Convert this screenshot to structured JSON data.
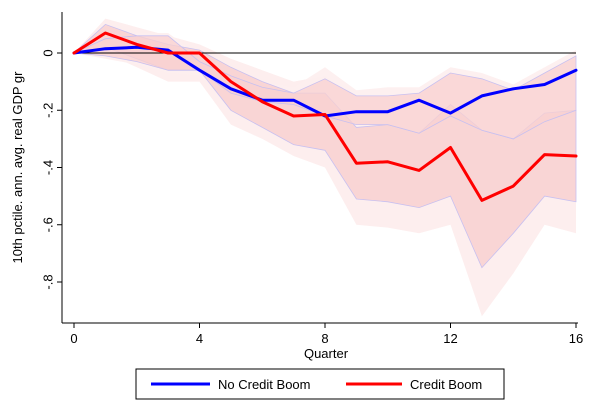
{
  "chart_data": {
    "type": "line",
    "xlabel": "Quarter",
    "ylabel": "10th pctile. ann. avg. real GDP gr",
    "xlim": [
      0,
      16
    ],
    "ylim": [
      -0.92,
      0.13
    ],
    "x_ticks": [
      0,
      4,
      8,
      12,
      16
    ],
    "x_tick_labels": [
      "0",
      "4",
      "8",
      "12",
      "16"
    ],
    "y_ticks": [
      0,
      -0.2,
      -0.4,
      -0.6,
      -0.8
    ],
    "y_tick_labels": [
      "0",
      "-.2",
      "-.4",
      "-.6",
      "-.8"
    ],
    "reference_line_y": 0,
    "grid": false,
    "legend_position": "bottom",
    "x": [
      0,
      1,
      2,
      3,
      4,
      5,
      6,
      7,
      8,
      9,
      10,
      11,
      12,
      13,
      14,
      15,
      16
    ],
    "series": [
      {
        "name": "No Credit Boom",
        "color": "#0000ff",
        "values": [
          0,
          0.015,
          0.02,
          0.01,
          -0.06,
          -0.125,
          -0.165,
          -0.165,
          -0.22,
          -0.205,
          -0.205,
          -0.165,
          -0.21,
          -0.15,
          -0.125,
          -0.11,
          -0.06
        ],
        "ci_inner_lower": [
          0,
          -0.01,
          -0.03,
          -0.06,
          -0.06,
          -0.14,
          -0.17,
          -0.18,
          -0.22,
          -0.25,
          -0.25,
          -0.28,
          -0.22,
          -0.27,
          -0.3,
          -0.24,
          -0.2
        ],
        "ci_inner_upper": [
          0,
          0.05,
          0.06,
          0.06,
          -0.03,
          -0.08,
          -0.12,
          -0.14,
          -0.09,
          -0.15,
          -0.15,
          -0.14,
          -0.07,
          -0.09,
          -0.13,
          -0.07,
          -0.01
        ],
        "ci_outer_lower": [
          0,
          -0.02,
          -0.04,
          -0.07,
          -0.08,
          -0.17,
          -0.2,
          -0.22,
          -0.26,
          -0.28,
          -0.27,
          -0.31,
          -0.25,
          -0.29,
          -0.31,
          -0.26,
          -0.22
        ],
        "ci_outer_upper": [
          0,
          0.06,
          0.07,
          0.07,
          -0.01,
          -0.06,
          -0.1,
          -0.12,
          -0.05,
          -0.13,
          -0.12,
          -0.12,
          -0.05,
          -0.07,
          -0.11,
          -0.05,
          0.01
        ]
      },
      {
        "name": "Credit Boom",
        "color": "#ff0000",
        "values": [
          0,
          0.07,
          0.03,
          0.0,
          0.0,
          -0.1,
          -0.17,
          -0.22,
          -0.215,
          -0.385,
          -0.38,
          -0.41,
          -0.33,
          -0.515,
          -0.465,
          -0.355,
          -0.36
        ],
        "ci_inner_lower": [
          0,
          0.02,
          -0.02,
          -0.06,
          -0.06,
          -0.2,
          -0.26,
          -0.32,
          -0.34,
          -0.51,
          -0.52,
          -0.54,
          -0.5,
          -0.75,
          -0.63,
          -0.5,
          -0.52
        ],
        "ci_inner_upper": [
          0,
          0.1,
          0.06,
          0.03,
          0.01,
          -0.05,
          -0.1,
          -0.14,
          -0.14,
          -0.26,
          -0.25,
          -0.28,
          -0.18,
          -0.27,
          -0.3,
          -0.21,
          -0.2
        ],
        "ci_outer_lower": [
          0,
          0.0,
          -0.05,
          -0.1,
          -0.1,
          -0.25,
          -0.3,
          -0.36,
          -0.4,
          -0.6,
          -0.61,
          -0.63,
          -0.6,
          -0.92,
          -0.77,
          -0.6,
          -0.63
        ],
        "ci_outer_upper": [
          0,
          0.12,
          0.09,
          0.06,
          0.03,
          -0.02,
          -0.06,
          -0.1,
          -0.08,
          -0.16,
          -0.16,
          -0.2,
          -0.06,
          -0.16,
          -0.19,
          -0.13,
          -0.09
        ]
      }
    ]
  },
  "colors": {
    "ci_inner": "#f8d0d0",
    "ci_outer": "#fdeeee",
    "ci_edge": "#c8c0f0",
    "reference_line": "#000000",
    "axis": "#000000"
  }
}
